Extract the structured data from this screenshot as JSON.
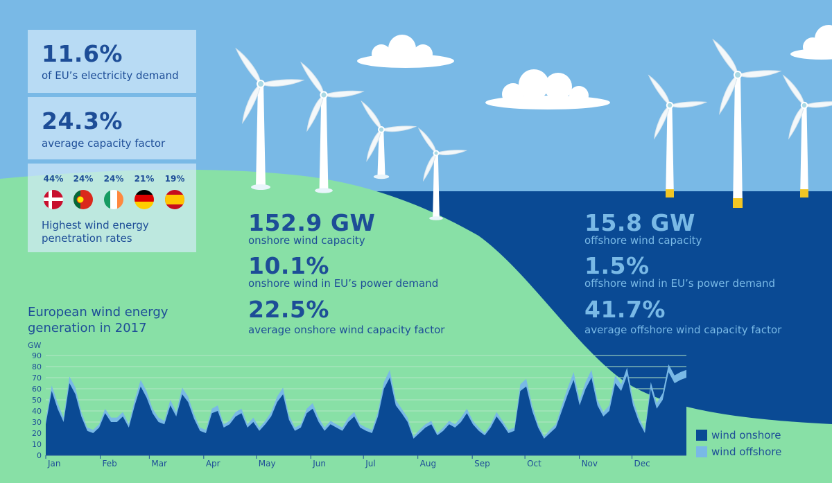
{
  "stats": {
    "eu_share": {
      "value": "11.6%",
      "label": "of EU’s electricity demand"
    },
    "capacity_factor": {
      "value": "24.3%",
      "label": "average capacity factor"
    }
  },
  "penetration": {
    "label_line1": "Highest wind energy",
    "label_line2": "penetration rates",
    "countries": [
      {
        "flag": "denmark-flag",
        "value": "44%"
      },
      {
        "flag": "portugal-flag",
        "value": "24%"
      },
      {
        "flag": "ireland-flag",
        "value": "24%"
      },
      {
        "flag": "germany-flag",
        "value": "21%"
      },
      {
        "flag": "spain-flag",
        "value": "19%"
      }
    ]
  },
  "onshore": {
    "capacity": {
      "value": "152.9 GW",
      "label": "onshore wind capacity"
    },
    "share": {
      "value": "10.1%",
      "label": "onshore wind in EU’s power demand"
    },
    "factor": {
      "value": "22.5%",
      "label": "average onshore wind capacity factor"
    }
  },
  "offshore": {
    "capacity": {
      "value": "15.8 GW",
      "label": "offshore wind capacity"
    },
    "share": {
      "value": "1.5%",
      "label": "offshore wind in EU’s power demand"
    },
    "factor": {
      "value": "41.7%",
      "label": "average offshore wind capacity factor"
    }
  },
  "colors": {
    "sky": "#79b9e6",
    "land": "#88e0a6",
    "sea": "#0a4a94",
    "navy_text": "#1d4d97",
    "onshore_series": "#0a4a94",
    "offshore_series": "#79b9e6"
  },
  "chart_data": {
    "type": "area",
    "title_line1": "European wind energy",
    "title_line2": "generation in 2017",
    "ylabel": "GW",
    "ylim": [
      0,
      90
    ],
    "yticks": [
      "0",
      "10",
      "20",
      "30",
      "40",
      "50",
      "60",
      "70",
      "80",
      "90"
    ],
    "x_range_days": [
      0,
      365
    ],
    "months": [
      "Jan",
      "Feb",
      "Mar",
      "Apr",
      "May",
      "Jun",
      "Jul",
      "Aug",
      "Sep",
      "Oct",
      "Nov",
      "Dec"
    ],
    "stacked": true,
    "grid": true,
    "legend_placement": "bottom-right",
    "series": [
      {
        "name": "wind onshore",
        "values": [
          28,
          58,
          42,
          30,
          65,
          55,
          35,
          22,
          20,
          25,
          38,
          30,
          30,
          35,
          25,
          45,
          62,
          52,
          38,
          30,
          28,
          45,
          35,
          55,
          48,
          33,
          22,
          20,
          38,
          40,
          25,
          28,
          35,
          38,
          25,
          30,
          22,
          28,
          35,
          48,
          55,
          32,
          22,
          25,
          38,
          42,
          30,
          22,
          28,
          25,
          22,
          30,
          35,
          25,
          22,
          20,
          35,
          60,
          70,
          45,
          38,
          30,
          15,
          20,
          25,
          28,
          18,
          22,
          28,
          25,
          30,
          38,
          28,
          22,
          18,
          25,
          35,
          28,
          20,
          22,
          58,
          62,
          40,
          25,
          15,
          20,
          25,
          40,
          55,
          68,
          45,
          60,
          70,
          45,
          35,
          40,
          65,
          58,
          72,
          45,
          30,
          20,
          60,
          42,
          50,
          75,
          65,
          68,
          70
        ]
      },
      {
        "name": "wind offshore",
        "values": [
          4,
          5,
          5,
          4,
          6,
          6,
          4,
          3,
          3,
          3,
          4,
          4,
          4,
          4,
          3,
          5,
          6,
          6,
          4,
          4,
          3,
          5,
          4,
          6,
          5,
          4,
          3,
          3,
          4,
          5,
          3,
          3,
          4,
          4,
          3,
          4,
          3,
          3,
          4,
          5,
          6,
          4,
          3,
          3,
          4,
          5,
          4,
          3,
          3,
          3,
          3,
          4,
          4,
          3,
          3,
          3,
          4,
          6,
          7,
          5,
          4,
          4,
          2,
          3,
          3,
          3,
          2,
          3,
          3,
          3,
          4,
          4,
          3,
          3,
          2,
          3,
          4,
          3,
          3,
          3,
          6,
          7,
          5,
          3,
          2,
          3,
          3,
          5,
          6,
          7,
          5,
          6,
          7,
          5,
          4,
          5,
          7,
          6,
          7,
          5,
          4,
          3,
          6,
          5,
          6,
          7,
          7,
          7,
          7
        ]
      }
    ]
  }
}
